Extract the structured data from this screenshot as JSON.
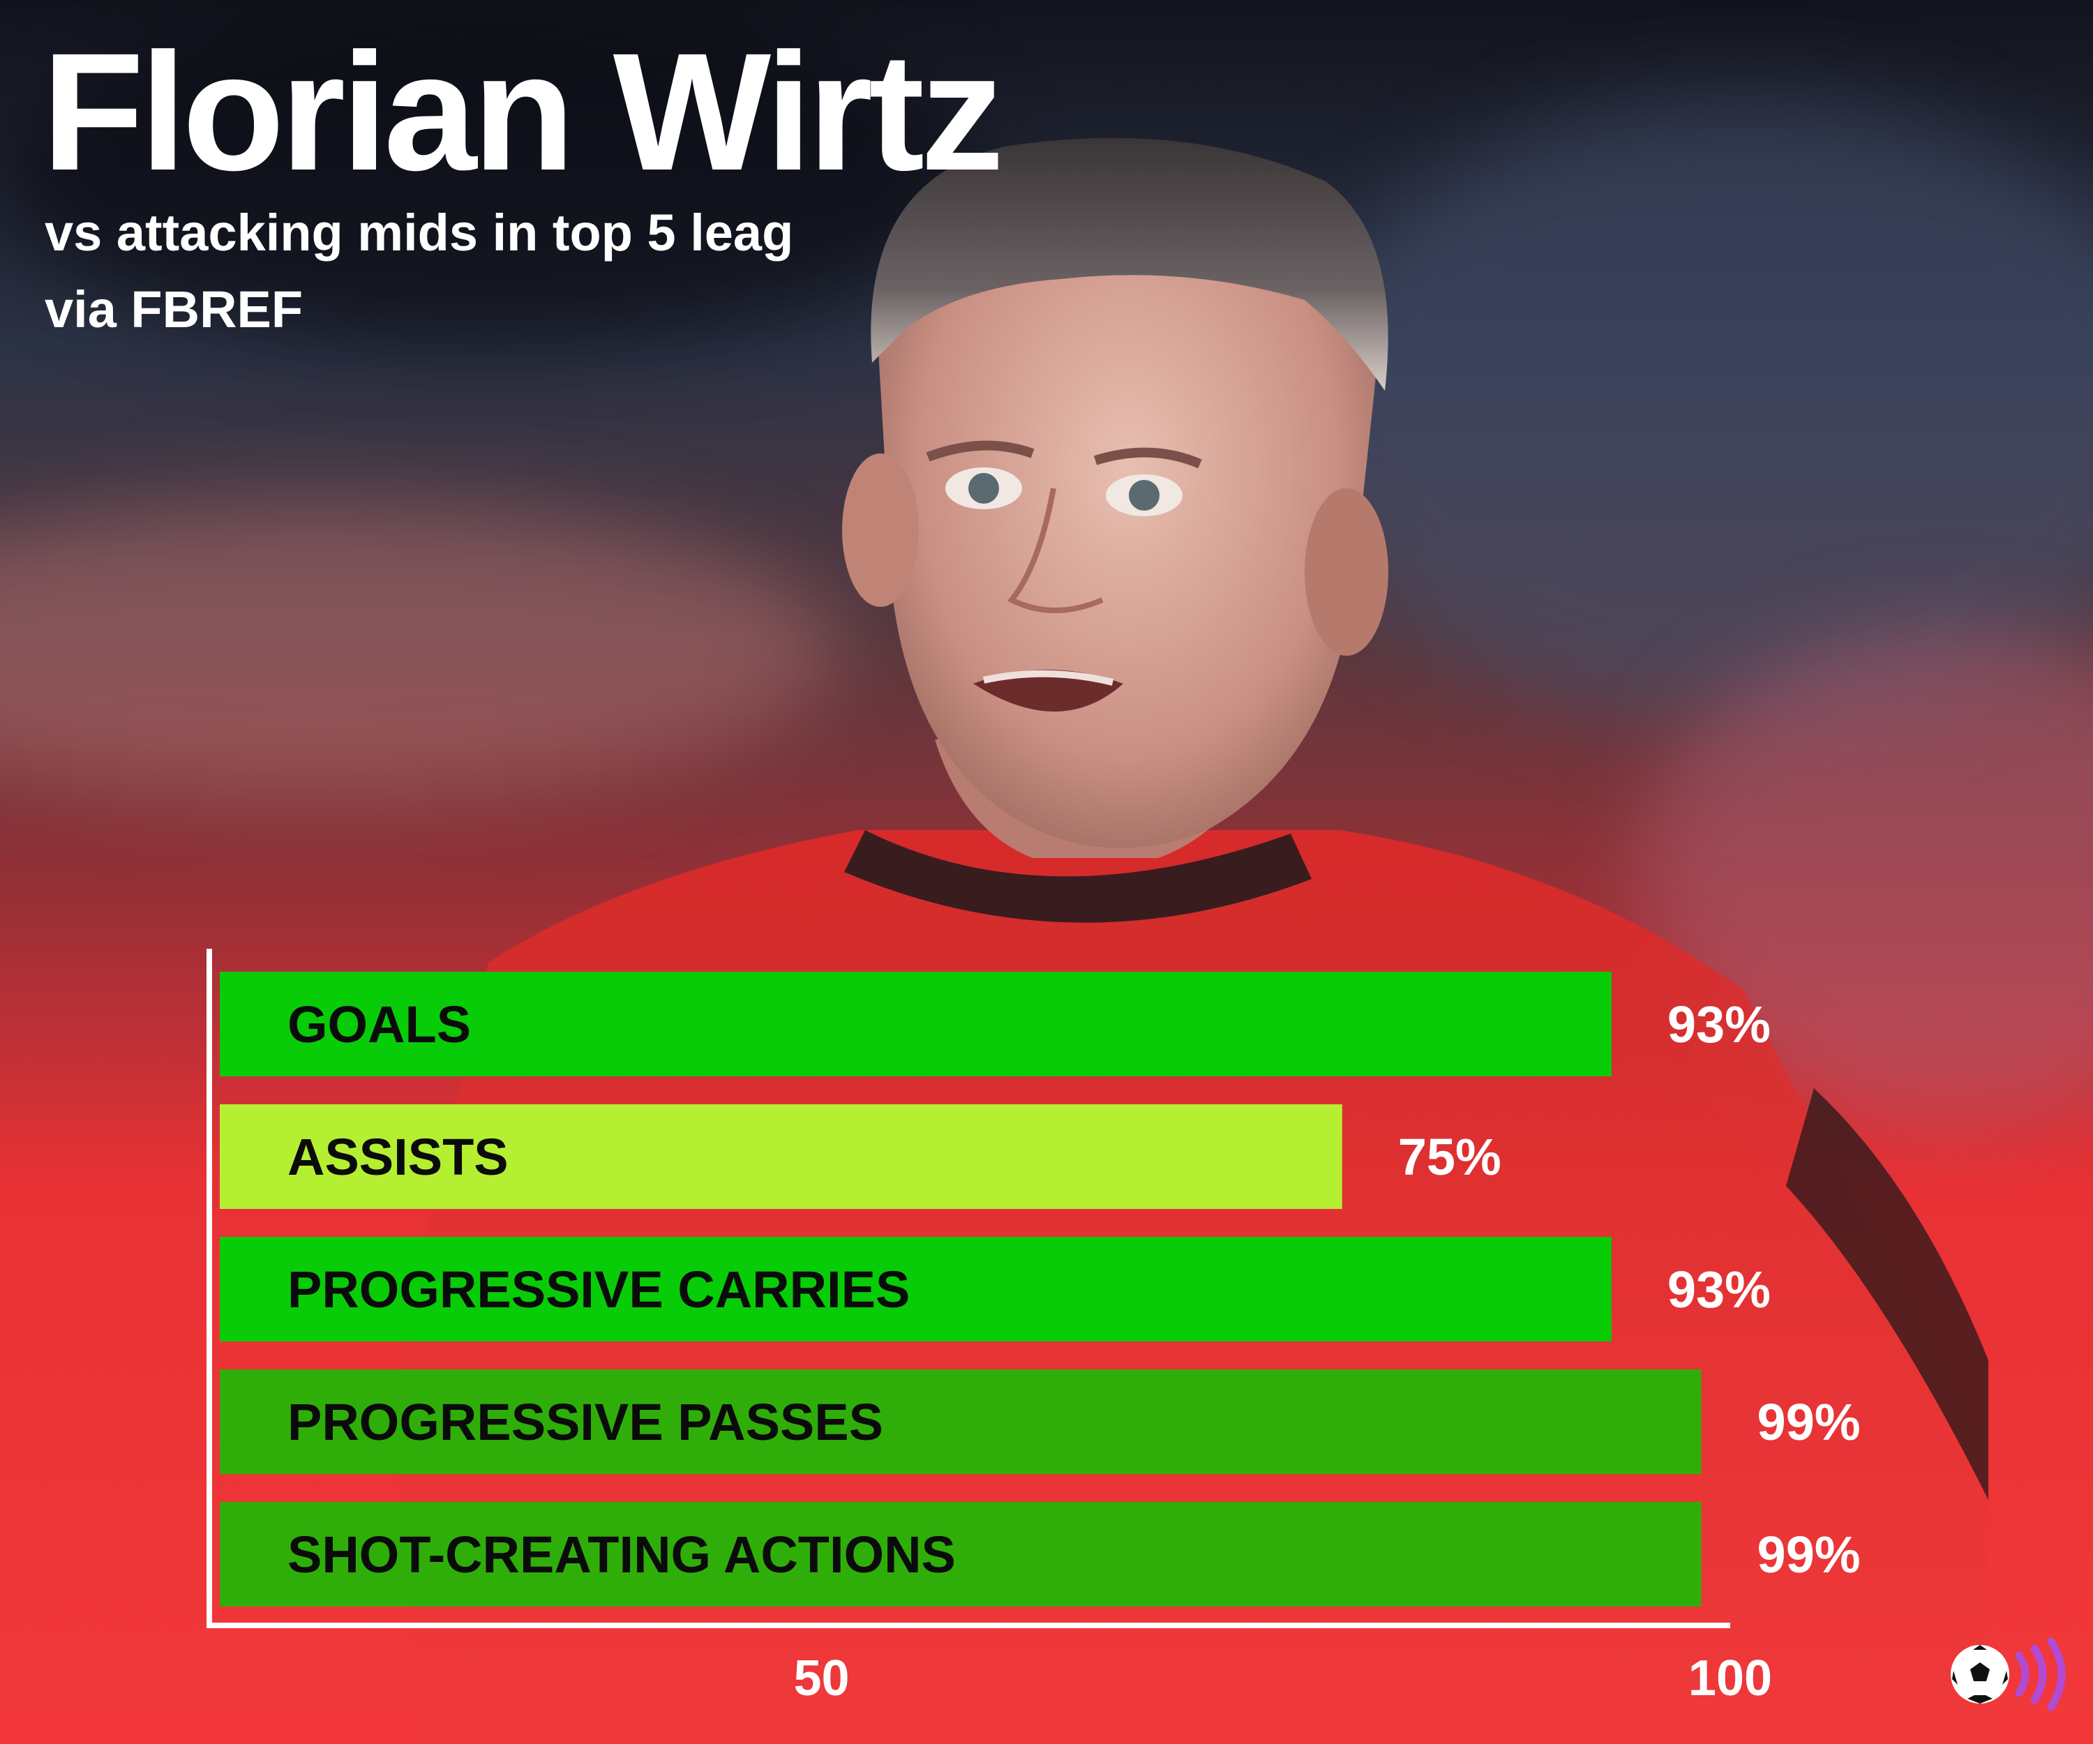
{
  "header": {
    "title": "Florian Wirtz",
    "subtitle": "vs attacking mids in top 5 leag",
    "source": "via FBREF"
  },
  "colors": {
    "green": "#08cc08",
    "lime": "#b5ef32",
    "dark_green": "#2fae0a",
    "background_red": "#f2383a"
  },
  "logo": {
    "icon": "football-broadcast-icon"
  },
  "chart_data": {
    "type": "bar",
    "orientation": "horizontal",
    "title": "Florian Wirtz",
    "subtitle": "vs attacking mids in top 5 leag",
    "categories": [
      "GOALS",
      "ASSISTS",
      "PROGRESSIVE CARRIES",
      "PROGRESSIVE PASSES",
      "SHOT-CREATING ACTIONS"
    ],
    "values": [
      93,
      75,
      93,
      99,
      99
    ],
    "value_labels": [
      "93%",
      "75%",
      "93%",
      "99%",
      "99%"
    ],
    "bar_colors": [
      "#08cc08",
      "#b5ef32",
      "#08cc08",
      "#2fae0a",
      "#2fae0a"
    ],
    "xlim": [
      0,
      100
    ],
    "xticks": [
      50,
      100
    ],
    "xtick_labels": [
      "50",
      "100"
    ],
    "xlabel": "",
    "ylabel": "",
    "grid": false,
    "legend": "none"
  }
}
